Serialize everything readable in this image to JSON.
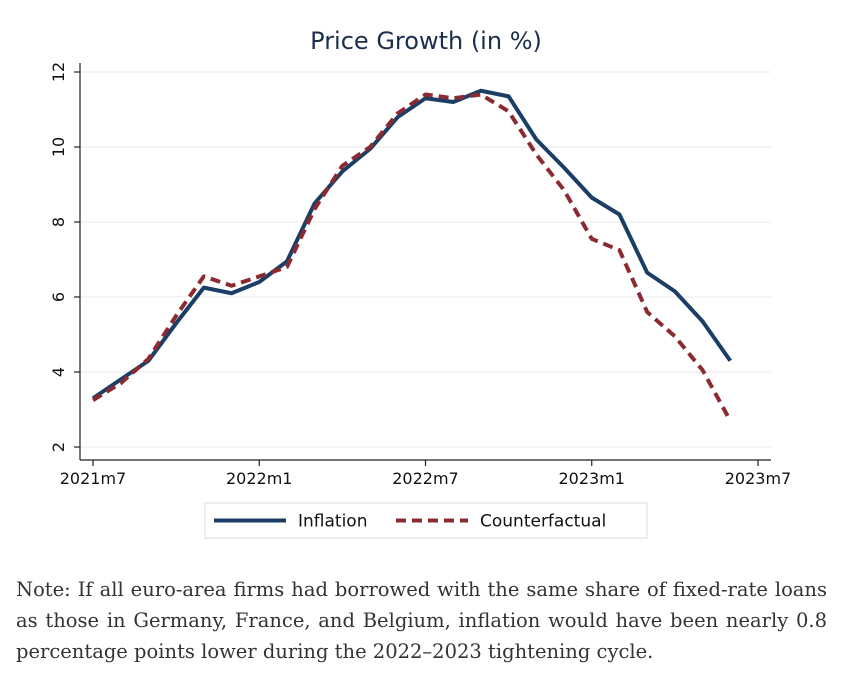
{
  "chart_data": {
    "type": "line",
    "title": "Price Growth (in %)",
    "xlabel": "",
    "ylabel": "",
    "x_tick_labels": [
      "2021m7",
      "2022m1",
      "2022m7",
      "2023m1",
      "2023m7"
    ],
    "x_tick_months": [
      0,
      6,
      12,
      18,
      24
    ],
    "y_ticks": [
      2,
      4,
      6,
      8,
      10,
      12
    ],
    "ylim": [
      2,
      12
    ],
    "xlim": [
      "2021m7",
      "2023m7"
    ],
    "grid": true,
    "legend_position": "bottom",
    "x": [
      "2021m7",
      "2021m8",
      "2021m9",
      "2021m10",
      "2021m11",
      "2021m12",
      "2022m1",
      "2022m2",
      "2022m3",
      "2022m4",
      "2022m5",
      "2022m6",
      "2022m7",
      "2022m8",
      "2022m9",
      "2022m10",
      "2022m11",
      "2022m12",
      "2023m1",
      "2023m2",
      "2023m3",
      "2023m4",
      "2023m5",
      "2023m6"
    ],
    "series": [
      {
        "name": "Inflation",
        "color": "#1a3e66",
        "style": "solid",
        "values": [
          3.3,
          3.8,
          4.3,
          5.3,
          6.25,
          6.1,
          6.4,
          6.95,
          8.5,
          9.35,
          9.95,
          10.8,
          11.3,
          11.2,
          11.5,
          11.35,
          10.2,
          9.45,
          8.65,
          8.2,
          6.65,
          6.15,
          5.35,
          4.3
        ]
      },
      {
        "name": "Counterfactual",
        "color": "#8b2a30",
        "style": "dashed",
        "values": [
          3.25,
          3.7,
          4.35,
          5.5,
          6.55,
          6.3,
          6.55,
          6.8,
          8.35,
          9.5,
          10.0,
          10.9,
          11.4,
          11.3,
          11.4,
          10.95,
          9.8,
          8.85,
          7.55,
          7.25,
          5.6,
          4.95,
          4.05,
          2.7
        ]
      }
    ]
  },
  "note": {
    "text": "Note: If all euro-area firms had borrowed with the same share of fixed-rate loans as those in Germany, France, and Belgium, inflation would have been nearly 0.8 percentage points lower during the 2022–2023 tightening cycle."
  }
}
